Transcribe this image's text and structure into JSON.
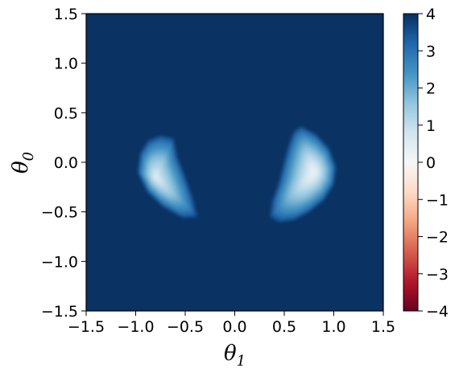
{
  "chart_data": {
    "type": "heatmap",
    "title": "",
    "xlabel": "θ",
    "xlabel_subscript": "1",
    "ylabel": "θ",
    "ylabel_subscript": "0",
    "xlim": [
      -1.5,
      1.5
    ],
    "ylim": [
      -1.5,
      1.5
    ],
    "x_ticks": [
      -1.5,
      -1.0,
      -0.5,
      0.0,
      0.5,
      1.0,
      1.5
    ],
    "x_tick_labels": [
      "−1.5",
      "−1.0",
      "−0.5",
      "0.0",
      "0.5",
      "1.0",
      "1.5"
    ],
    "y_ticks": [
      1.5,
      1.0,
      0.5,
      0.0,
      -0.5,
      -1.0,
      -1.5
    ],
    "y_tick_labels": [
      "1.5",
      "1.0",
      "0.5",
      "0.0",
      "−0.5",
      "−1.0",
      "−1.5"
    ],
    "colorbar": {
      "colormap": "RdBu",
      "range": [
        -4,
        4
      ],
      "ticks": [
        4,
        3,
        2,
        1,
        0,
        -1,
        -2,
        -3,
        -4
      ],
      "tick_labels": [
        "4",
        "3",
        "2",
        "1",
        "0",
        "−1",
        "−2",
        "−3",
        "−4"
      ]
    },
    "background_value": 4,
    "regions": [
      {
        "center": [
          -0.8,
          -0.15
        ],
        "min_value": 0.6,
        "outline": [
          [
            -0.75,
            0.27
          ],
          [
            -0.62,
            0.24
          ],
          [
            -0.58,
            0.05
          ],
          [
            -0.5,
            -0.15
          ],
          [
            -0.43,
            -0.35
          ],
          [
            -0.38,
            -0.55
          ],
          [
            -0.52,
            -0.56
          ],
          [
            -0.72,
            -0.45
          ],
          [
            -0.88,
            -0.3
          ],
          [
            -0.98,
            -0.1
          ],
          [
            -0.95,
            0.1
          ],
          [
            -0.87,
            0.22
          ]
        ]
      },
      {
        "center": [
          0.8,
          -0.1
        ],
        "min_value": 0.25,
        "outline": [
          [
            0.67,
            0.36
          ],
          [
            0.82,
            0.28
          ],
          [
            0.95,
            0.14
          ],
          [
            1.02,
            -0.05
          ],
          [
            1.0,
            -0.22
          ],
          [
            0.9,
            -0.38
          ],
          [
            0.75,
            -0.5
          ],
          [
            0.6,
            -0.58
          ],
          [
            0.45,
            -0.6
          ],
          [
            0.36,
            -0.55
          ],
          [
            0.38,
            -0.4
          ],
          [
            0.45,
            -0.2
          ],
          [
            0.5,
            0.0
          ],
          [
            0.55,
            0.18
          ],
          [
            0.6,
            0.31
          ]
        ]
      }
    ]
  }
}
